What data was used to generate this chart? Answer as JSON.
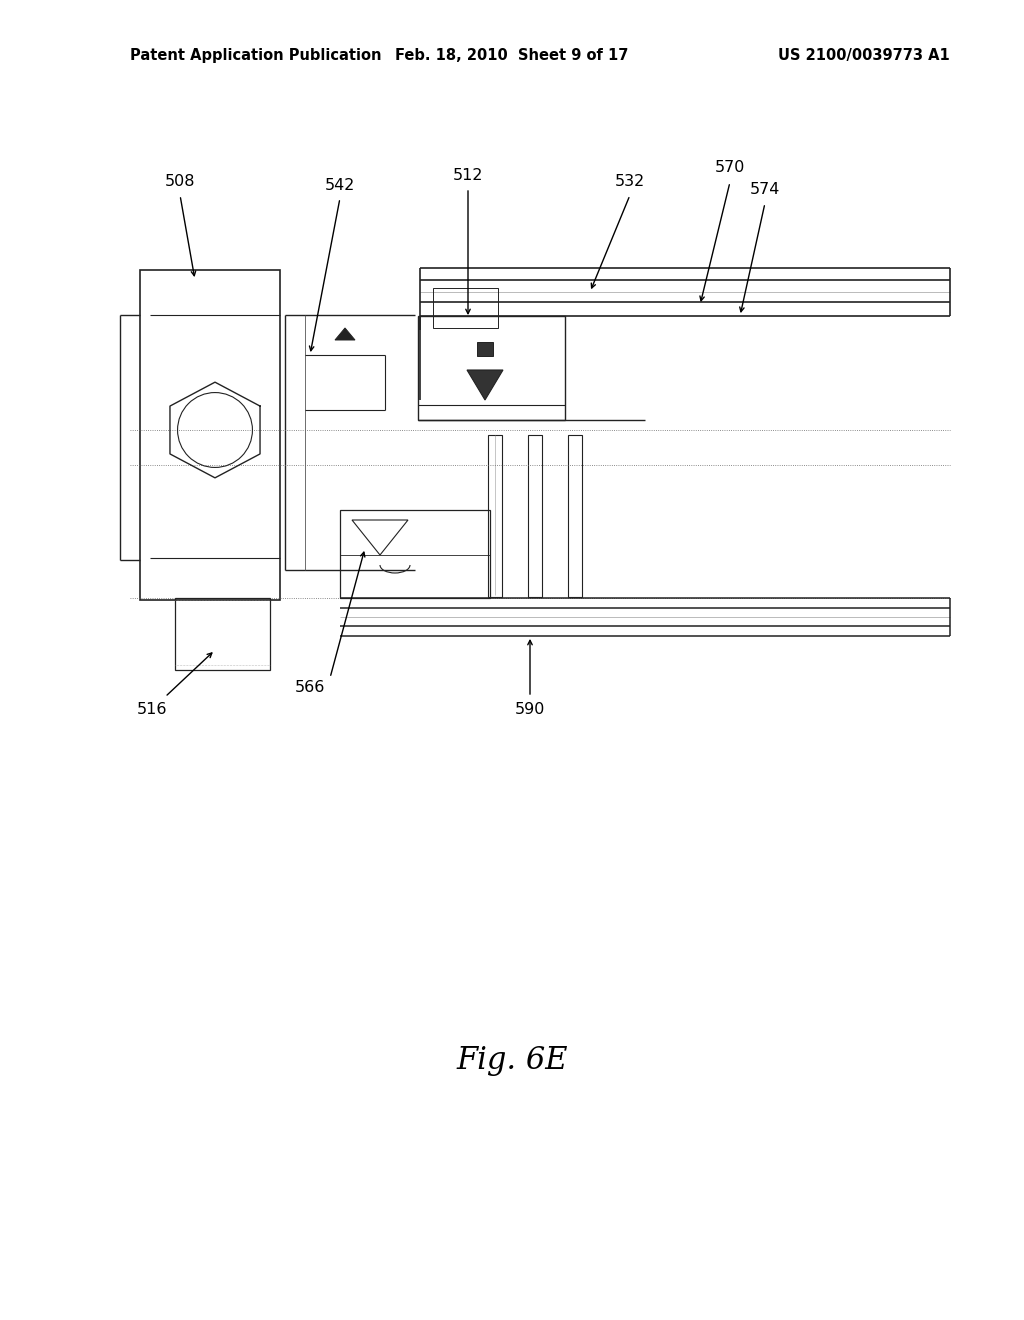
{
  "background_color": "#ffffff",
  "header_left": "Patent Application Publication",
  "header_center": "Feb. 18, 2010  Sheet 9 of 17",
  "header_right": "US 2100/0039773 A1",
  "figure_label": "Fig. 6E",
  "line_color": "#222222",
  "lw": 1.0,
  "header_fontsize": 10.5,
  "label_fontsize": 11.5,
  "fig_label_fontsize": 22
}
